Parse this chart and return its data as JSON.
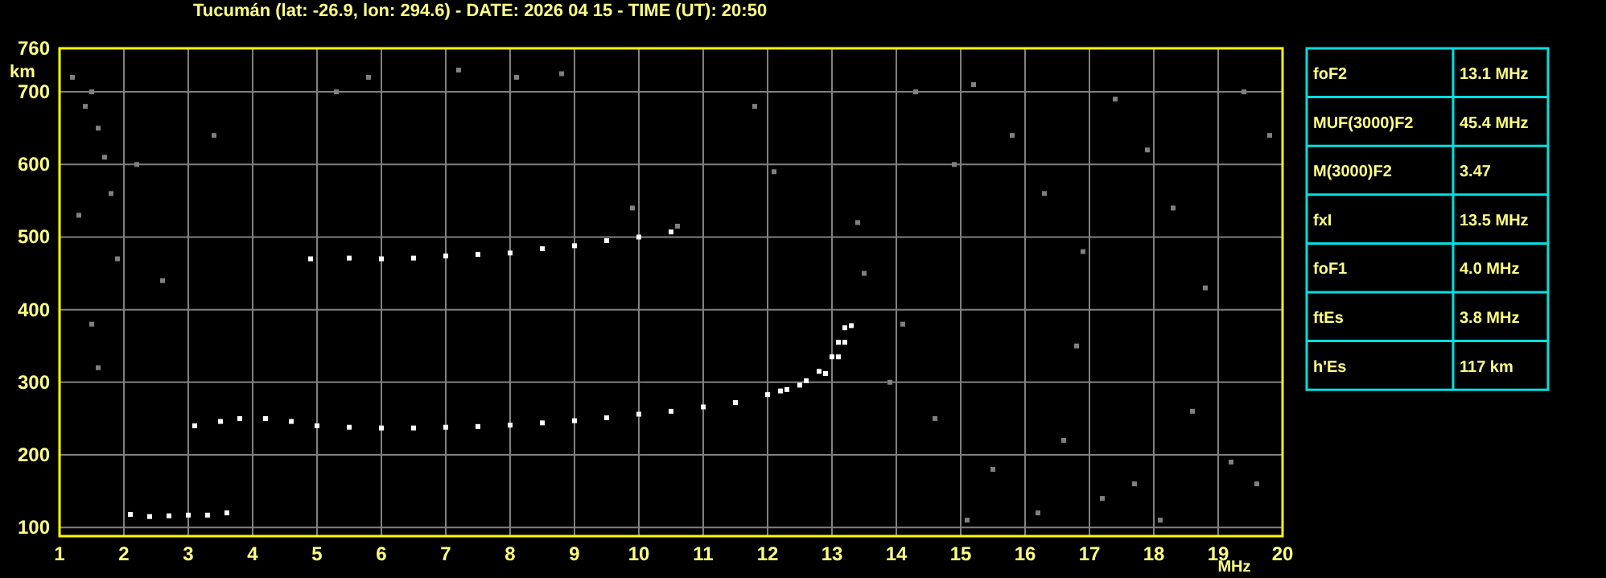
{
  "chart_data": [
    {
      "type": "scatter",
      "title": "Tucumán (lat: -26.9, lon: 294.6) - DATE: 2026 04 15 - TIME (UT): 20:50",
      "xlabel": "MHz",
      "ylabel": "km",
      "xlim": [
        1,
        20
      ],
      "ylim": [
        88,
        760
      ],
      "xticks": [
        1,
        2,
        3,
        4,
        5,
        6,
        7,
        8,
        9,
        10,
        11,
        12,
        13,
        14,
        15,
        16,
        17,
        18,
        19,
        20
      ],
      "yticks": [
        100,
        200,
        300,
        400,
        500,
        600,
        700,
        760
      ],
      "grid": true,
      "marker": "square",
      "series": [
        {
          "color": "#ffffff",
          "x": [
            3.1,
            3.5,
            3.8,
            4.2,
            4.6,
            5,
            5.5,
            6,
            6.5,
            7,
            7.5,
            8,
            8.5,
            9,
            9.5,
            10,
            10.5,
            11,
            11.5,
            12,
            12.3,
            12.6,
            12.8,
            13.0,
            13.1,
            13.2
          ],
          "values": [
            240,
            246,
            250,
            250,
            246,
            240,
            238,
            237,
            237,
            238,
            239,
            241,
            244,
            247,
            251,
            256,
            260,
            266,
            272,
            283,
            290,
            302,
            315,
            335,
            355,
            375
          ]
        },
        {
          "color": "#ffffff",
          "x": [
            12.2,
            12.5,
            12.9,
            13.1,
            13.2,
            13.3
          ],
          "values": [
            288,
            296,
            312,
            335,
            355,
            378
          ]
        },
        {
          "color": "#ffffff",
          "x": [
            4.9,
            5.5,
            6,
            6.5,
            7,
            7.5,
            8,
            8.5,
            9,
            9.5,
            10,
            10.5
          ],
          "values": [
            470,
            471,
            470,
            471,
            474,
            476,
            478,
            484,
            488,
            495,
            500,
            507
          ]
        },
        {
          "color": "#ffffff",
          "x": [
            2.1,
            2.4,
            2.7,
            3,
            3.3,
            3.6
          ],
          "values": [
            118,
            115,
            116,
            117,
            117,
            120
          ]
        },
        {
          "color": "#808080",
          "x": [
            1.2,
            1.4,
            1.5,
            1.6,
            1.7,
            1.8,
            1.3,
            1.9,
            2.2,
            2.6,
            3.4,
            1.5,
            1.6,
            5.3,
            5.8,
            7.2,
            8.1,
            8.8,
            9.9,
            10.6,
            11.8,
            12.1,
            13.4,
            13.5,
            14.1,
            14.9,
            15.2,
            15.8,
            16.3,
            16.9,
            17.4,
            17.9,
            18.3,
            18.8,
            19.4,
            19.8,
            13.9,
            14.6,
            15.5,
            16.6,
            17.2,
            18.6,
            19.2,
            15.1,
            16.2,
            17.7,
            18.1,
            19.6,
            14.3,
            16.8
          ],
          "values": [
            720,
            680,
            700,
            650,
            610,
            560,
            530,
            470,
            600,
            440,
            640,
            380,
            320,
            700,
            720,
            730,
            720,
            725,
            540,
            515,
            680,
            590,
            520,
            450,
            380,
            600,
            710,
            640,
            560,
            480,
            690,
            620,
            540,
            430,
            700,
            640,
            300,
            250,
            180,
            220,
            140,
            260,
            190,
            110,
            120,
            160,
            110,
            160,
            700,
            350
          ]
        }
      ]
    },
    {
      "type": "other",
      "categories": [
        "foF2",
        "MUF(3000)F2",
        "M(3000)F2",
        "fxI",
        "foF1",
        "ftEs",
        "h'Es"
      ],
      "value_labels": [
        "13.1 MHz",
        "45.4 MHz",
        "3.47",
        "13.5 MHz",
        "4.0 MHz",
        "3.8 MHz",
        "117 km"
      ]
    }
  ]
}
